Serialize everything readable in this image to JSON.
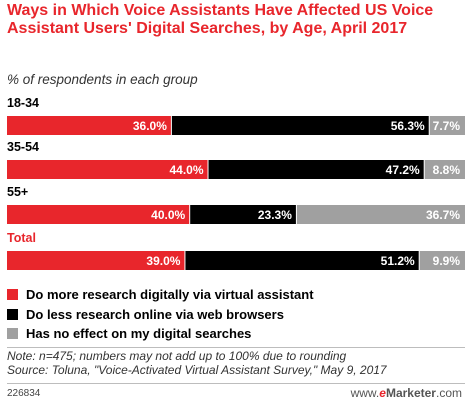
{
  "title": "Ways in Which Voice Assistants Have Affected US Voice Assistant Users' Digital Searches, by Age, April 2017",
  "subtitle": "% of respondents in each group",
  "chart_data": {
    "type": "bar",
    "orientation": "horizontal",
    "stacked": true,
    "categories": [
      "18-34",
      "35-54",
      "55+",
      "Total"
    ],
    "series": [
      {
        "name": "Do more research digitally via virtual assistant",
        "values": [
          36.0,
          44.0,
          40.0,
          39.0
        ],
        "color": "#e8262c"
      },
      {
        "name": "Do less research online via web browsers",
        "values": [
          56.3,
          47.2,
          23.3,
          51.2
        ],
        "color": "#000000"
      },
      {
        "name": "Has no effect on my digital searches",
        "values": [
          7.7,
          8.8,
          36.7,
          9.9
        ],
        "color": "#a0a0a0"
      }
    ],
    "value_labels": [
      [
        "36.0%",
        "56.3%",
        "7.7%"
      ],
      [
        "44.0%",
        "47.2%",
        "8.8%"
      ],
      [
        "40.0%",
        "23.3%",
        "36.7%"
      ],
      [
        "39.0%",
        "51.2%",
        "9.9%"
      ]
    ],
    "legend_position": "bottom",
    "grid": false
  },
  "note": "Note: n=475; numbers may not add up to 100% due to rounding",
  "source": "Source: Toluna, \"Voice-Activated Virtual Assistant Survey,\" May 9, 2017",
  "footer_id": "226834",
  "brand": {
    "prefix": "www.",
    "e": "e",
    "main": "Marketer",
    "suffix": ".com"
  }
}
